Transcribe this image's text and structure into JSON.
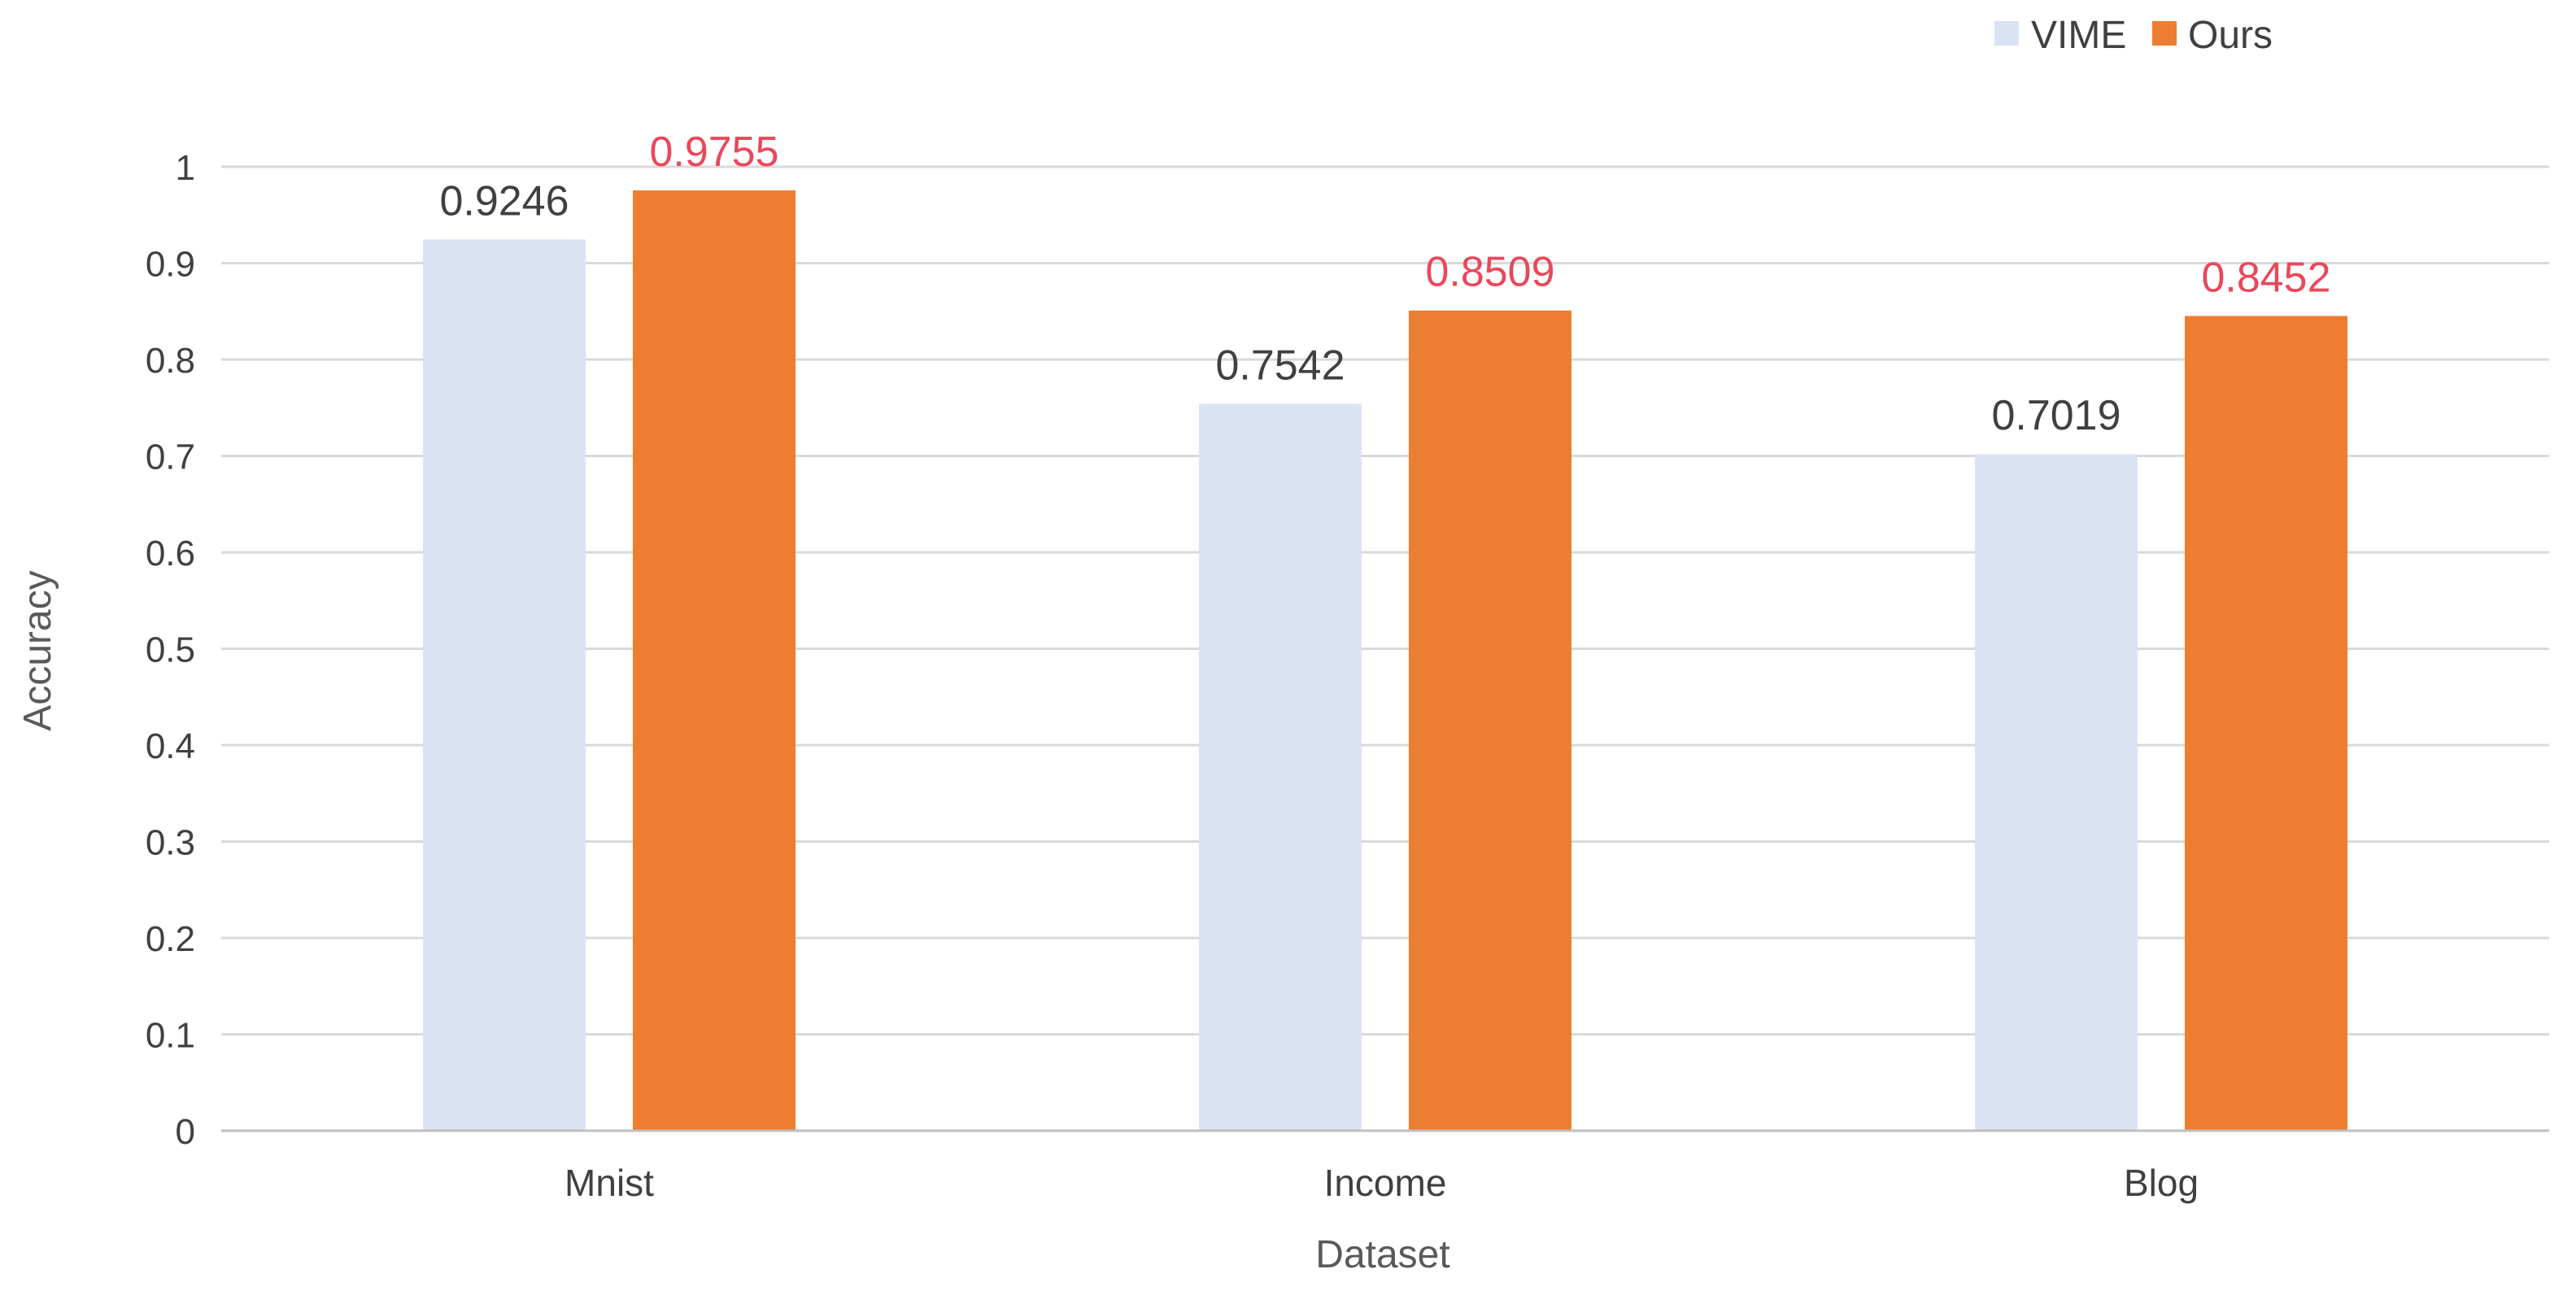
{
  "chart_data": {
    "type": "bar",
    "categories": [
      "Mnist",
      "Income",
      "Blog"
    ],
    "series": [
      {
        "name": "VIME",
        "values": [
          0.9246,
          0.7542,
          0.7019
        ],
        "color": "#dae3f3",
        "label_color": "#404040"
      },
      {
        "name": "Ours",
        "values": [
          0.9755,
          0.8509,
          0.8452
        ],
        "color": "#ed7d31",
        "label_color": "#e8485a"
      }
    ],
    "data_labels": [
      [
        "0.9246",
        "0.7542",
        "0.7019"
      ],
      [
        "0.9755",
        "0.8509",
        "0.8452"
      ]
    ],
    "yticks": [
      "0",
      "0.1",
      "0.2",
      "0.3",
      "0.4",
      "0.5",
      "0.6",
      "0.7",
      "0.8",
      "0.9",
      "1"
    ],
    "xlabel": "Dataset",
    "ylabel": "Accuracy",
    "ylim": [
      0,
      1
    ],
    "grid": true,
    "legend_position": "top-right"
  }
}
